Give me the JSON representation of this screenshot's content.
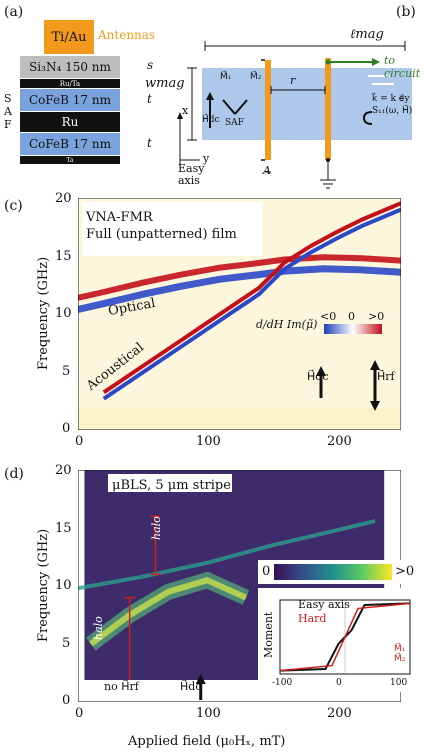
{
  "panels": {
    "a": "(a)",
    "b": "(b)",
    "c": "(c)",
    "d": "(d)"
  },
  "stack": {
    "antenna_material": "Ti/Au",
    "antenna_label": "Antennas",
    "si3n4": "Si₃N₄ 150 nm",
    "si3n4_sym": "s",
    "ru_ta": "Ru/Ta",
    "cofeb_top": "CoFeB 17 nm",
    "cofeb_top_sym": "t",
    "ru": "Ru",
    "cofeb_bottom": "CoFeB 17 nm",
    "cofeb_bottom_sym": "t",
    "ta": "Ta",
    "saf_label": "SAF",
    "colors": {
      "antenna": "#f39a1c",
      "si3n4": "#bdbdbd",
      "cofeb": "#7aa3dd",
      "dark": "#111111"
    }
  },
  "schematic": {
    "l_mag": "ℓmag",
    "w_mag": "wmag",
    "to_circuit": "to circuit",
    "r": "r",
    "saf": "SAF",
    "m1": "M⃗₁",
    "m2": "M⃗₂",
    "hdc": "H⃗dc",
    "k_vec": "k⃗ = k e⃗y",
    "s11": "S₁₁(ω, H⃗)",
    "easy_axis": "Easy axis",
    "axis_x": "x",
    "axis_y": "y",
    "a_sym": "A",
    "colors": {
      "film": "#aec8ec",
      "antenna": "#f39a1c",
      "circuit": "#2e7d20"
    }
  },
  "chart_c": {
    "title1": "VNA-FMR",
    "title2": "Full (unpatterned) film",
    "ylabel": "Frequency (GHz)",
    "yticks": [
      "0",
      "5",
      "10",
      "15",
      "20"
    ],
    "xticks": [
      "0",
      "100",
      "200"
    ],
    "optical": "Optical",
    "acoustical": "Acoustical",
    "cbar_label": "d/dH Im(μ̃)",
    "cbar_low": "<0",
    "cbar_mid": "0",
    "cbar_high": ">0",
    "hdc": "H⃗dc",
    "hrf": "H⃗rf"
  },
  "chart_d": {
    "title": "μBLS, 5 μm stripe",
    "ylabel": "Frequency (GHz)",
    "xlabel": "Applied field (μ₀Hₓ, mT)",
    "yticks": [
      "0",
      "5",
      "10",
      "15",
      "20"
    ],
    "xticks": [
      "0",
      "100",
      "200"
    ],
    "halo": "halo",
    "cbar_low": "0",
    "cbar_high": ">0",
    "no_hrf": "no H⃗rf",
    "hdc": "H⃗dc",
    "inset_ylabel": "Moment",
    "inset_easy": "Easy axis",
    "inset_hard": "Hard",
    "inset_xticks": [
      "-100",
      "0",
      "100"
    ],
    "inset_m1": "M⃗₁",
    "inset_m2": "M⃗₂"
  },
  "chart_data": [
    {
      "type": "heatmap",
      "ylabel": "Frequency (GHz)",
      "xlim": [
        0,
        250
      ],
      "ylim": [
        0,
        20
      ],
      "series": [
        {
          "name": "Optical",
          "x": [
            0,
            20,
            50,
            80,
            110,
            140,
            160,
            190,
            220,
            250
          ],
          "y": [
            11.0,
            11.5,
            12.3,
            13.0,
            13.6,
            14.0,
            14.3,
            14.5,
            14.4,
            14.2
          ]
        },
        {
          "name": "Acoustical",
          "x": [
            20,
            40,
            60,
            80,
            100,
            120,
            140,
            160,
            180,
            200,
            220,
            250
          ],
          "y": [
            3.0,
            4.5,
            6.0,
            7.5,
            9.0,
            10.5,
            12.0,
            14.2,
            15.6,
            16.8,
            17.9,
            19.3
          ]
        }
      ]
    },
    {
      "type": "heatmap",
      "ylabel": "Frequency (GHz)",
      "xlabel": "Applied field (μ₀Hₓ, mT)",
      "xlim": [
        0,
        250
      ],
      "ylim": [
        0,
        20
      ],
      "series": [
        {
          "name": "halo",
          "x": [
            10,
            40,
            70,
            100,
            130
          ],
          "y": [
            5.0,
            7.5,
            9.5,
            10.5,
            9.0
          ]
        },
        {
          "name": "",
          "x": [
            0,
            50,
            100,
            150,
            200,
            230
          ],
          "y": [
            9.8,
            10.8,
            12.0,
            13.5,
            14.8,
            15.6
          ]
        }
      ]
    },
    {
      "type": "line",
      "ylabel": "Moment",
      "xlim": [
        -100,
        100
      ],
      "series": [
        {
          "name": "Easy axis",
          "x": [
            -100,
            -30,
            -10,
            0,
            10,
            30,
            100
          ],
          "y": [
            -1,
            -0.95,
            -0.2,
            0,
            0.2,
            0.95,
            1
          ]
        },
        {
          "name": "Hard",
          "x": [
            -100,
            -20,
            0,
            20,
            100
          ],
          "y": [
            -1,
            -0.85,
            0,
            0.85,
            1
          ]
        }
      ]
    }
  ]
}
